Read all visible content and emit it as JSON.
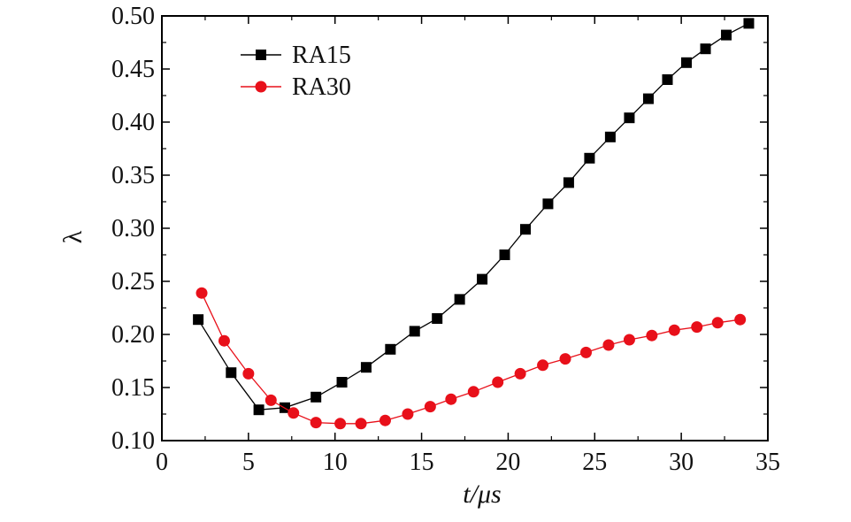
{
  "chart_data": {
    "type": "line",
    "xlabel": "t/μs",
    "ylabel": "λ",
    "xlim": [
      0,
      35
    ],
    "ylim": [
      0.1,
      0.5
    ],
    "xticks": [
      "0",
      "5",
      "10",
      "15",
      "20",
      "25",
      "30",
      "35"
    ],
    "yticks": [
      "0.10",
      "0.15",
      "0.20",
      "0.25",
      "0.30",
      "0.35",
      "0.40",
      "0.45",
      "0.50"
    ],
    "legend_position": "top-left",
    "grid": false,
    "series": [
      {
        "name": "RA15",
        "color": "#000000",
        "marker": "square",
        "x": [
          2.1,
          4.0,
          5.6,
          7.1,
          8.9,
          10.4,
          11.8,
          13.2,
          14.6,
          15.9,
          17.2,
          18.5,
          19.8,
          21.0,
          22.3,
          23.5,
          24.7,
          25.9,
          27.0,
          28.1,
          29.2,
          30.3,
          31.4,
          32.6,
          33.9
        ],
        "y": [
          0.214,
          0.164,
          0.129,
          0.131,
          0.141,
          0.155,
          0.169,
          0.186,
          0.203,
          0.215,
          0.233,
          0.252,
          0.275,
          0.299,
          0.323,
          0.343,
          0.366,
          0.386,
          0.404,
          0.422,
          0.44,
          0.456,
          0.469,
          0.482,
          0.493
        ]
      },
      {
        "name": "RA30",
        "color": "#e8101a",
        "marker": "circle",
        "x": [
          2.3,
          3.6,
          5.0,
          6.3,
          7.6,
          8.9,
          10.3,
          11.5,
          12.9,
          14.2,
          15.5,
          16.7,
          18.0,
          19.4,
          20.7,
          22.0,
          23.3,
          24.5,
          25.8,
          27.0,
          28.3,
          29.6,
          30.9,
          32.1,
          33.4
        ],
        "y": [
          0.239,
          0.194,
          0.163,
          0.138,
          0.126,
          0.117,
          0.116,
          0.116,
          0.119,
          0.125,
          0.132,
          0.139,
          0.146,
          0.155,
          0.163,
          0.171,
          0.177,
          0.183,
          0.19,
          0.195,
          0.199,
          0.204,
          0.207,
          0.211,
          0.214
        ]
      }
    ]
  }
}
